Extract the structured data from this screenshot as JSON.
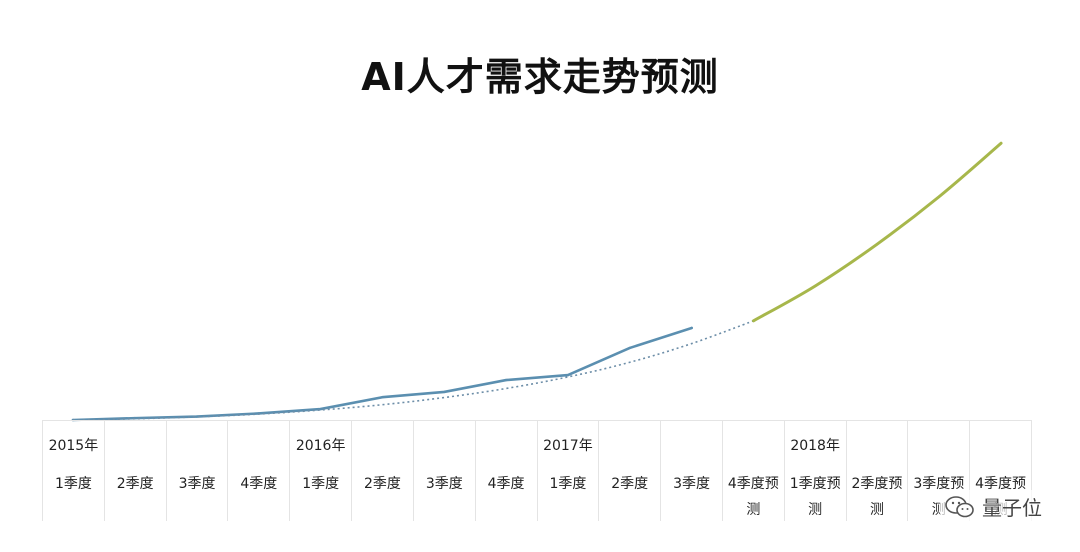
{
  "chart_data": {
    "type": "line",
    "title": "AI人才需求走势预测",
    "xlabel": "",
    "ylabel": "",
    "grid": false,
    "categories": [
      {
        "year": "2015年",
        "quarter": "1季度"
      },
      {
        "year": "",
        "quarter": "2季度"
      },
      {
        "year": "",
        "quarter": "3季度"
      },
      {
        "year": "",
        "quarter": "4季度"
      },
      {
        "year": "2016年",
        "quarter": "1季度"
      },
      {
        "year": "",
        "quarter": "2季度"
      },
      {
        "year": "",
        "quarter": "3季度"
      },
      {
        "year": "",
        "quarter": "4季度"
      },
      {
        "year": "2017年",
        "quarter": "1季度"
      },
      {
        "year": "",
        "quarter": "2季度"
      },
      {
        "year": "",
        "quarter": "3季度"
      },
      {
        "year": "",
        "quarter": "4季度预测"
      },
      {
        "year": "2018年",
        "quarter": "1季度预测"
      },
      {
        "year": "",
        "quarter": "2季度预测"
      },
      {
        "year": "",
        "quarter": "3季度预测"
      },
      {
        "year": "",
        "quarter": "4季度预测"
      }
    ],
    "ylim": [
      0,
      100
    ],
    "series": [
      {
        "role": "actual",
        "color": "#5b8fb0",
        "values": [
          0.0,
          0.6,
          1.1,
          2.1,
          3.5,
          7.3,
          9.0,
          12.8,
          14.4,
          23.1,
          29.5,
          null,
          null,
          null,
          null,
          null
        ]
      },
      {
        "role": "trend",
        "color": "#6d8ea8",
        "dashed": true,
        "values": [
          0.0,
          0.4,
          1.0,
          1.9,
          3.2,
          4.9,
          7.2,
          10.1,
          13.8,
          18.5,
          24.5,
          31.8,
          null,
          null,
          null,
          null
        ]
      },
      {
        "role": "forecast",
        "color": "#a7b74b",
        "values": [
          null,
          null,
          null,
          null,
          null,
          null,
          null,
          null,
          null,
          null,
          null,
          31.8,
          43.0,
          56.4,
          71.6,
          88.7
        ]
      }
    ]
  },
  "watermark": {
    "icon": "wechat-icon",
    "text": "量子位"
  }
}
